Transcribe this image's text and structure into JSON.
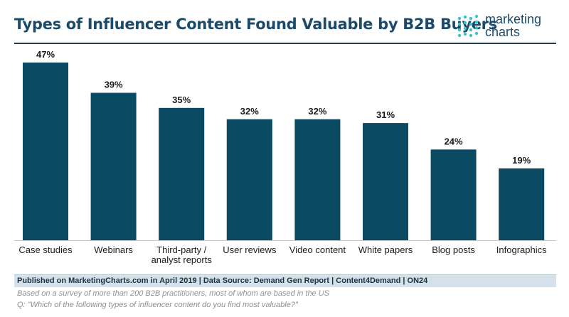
{
  "header": {
    "title": "Types of Influencer Content Found Valuable by B2B Buyers",
    "logo_line1": "marketing",
    "logo_line2": "charts"
  },
  "chart_data": {
    "type": "bar",
    "title": "Types of Influencer Content Found Valuable by B2B Buyers",
    "categories": [
      [
        "Case studies"
      ],
      [
        "Webinars"
      ],
      [
        "Third-party /",
        "analyst reports"
      ],
      [
        "User reviews"
      ],
      [
        "Video content"
      ],
      [
        "White papers"
      ],
      [
        "Blog posts"
      ],
      [
        "Infographics"
      ]
    ],
    "values": [
      47,
      39,
      35,
      32,
      32,
      31,
      24,
      19
    ],
    "value_labels": [
      "47%",
      "39%",
      "35%",
      "32%",
      "32%",
      "31%",
      "24%",
      "19%"
    ],
    "ylim": [
      0,
      47
    ],
    "bar_color": "#0a4a62",
    "grid": false
  },
  "footer": {
    "source": "Published on MarketingCharts.com in April 2019 | Data Source: Demand Gen Report | Content4Demand | ON24",
    "note1": "Based on a survey of more than 200 B2B practitioners, most of whom are based in the US",
    "note2": "Q: \"Which of the following types of influencer content do you find most valuable?\""
  },
  "colors": {
    "title": "#1b4a6b",
    "bar": "#0a4a62",
    "footer_bg": "#d4e1ea",
    "logo_dots": "#3ec1c9"
  }
}
